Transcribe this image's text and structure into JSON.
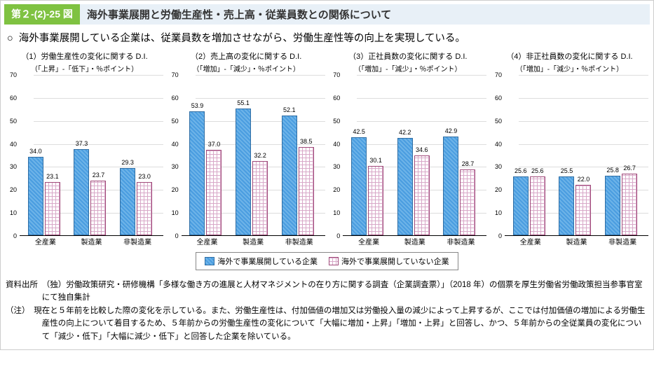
{
  "header": {
    "tag": "第２-(2)-25 図",
    "title": "海外事業展開と労働生産性・売上高・従業員数との関係について"
  },
  "lead": "海外事業展開している企業は、従業員数を増加させながら、労働生産性等の向上を実現している。",
  "axis": {
    "ylim": [
      0,
      70
    ],
    "ytick_step": 10,
    "yticks": [
      0,
      10,
      20,
      30,
      40,
      50,
      60,
      70
    ],
    "background_color": "#ffffff",
    "grid_color": "#dddddd",
    "bar_color_a": "#4a9de0",
    "bar_color_b": "#d8a8c8",
    "bar_border_a": "#2e6da4",
    "bar_border_b": "#a04a7a",
    "label_fontsize": 9
  },
  "categories": [
    "全産業",
    "製造業",
    "非製造業"
  ],
  "charts": [
    {
      "title": "（1）労働生産性の変化に関する D.I.",
      "subtitle": "（「上昇」-「低下」・％ポイント）",
      "type": "bar",
      "groups": [
        {
          "a": 34.0,
          "b": 23.1
        },
        {
          "a": 37.3,
          "b": 23.7
        },
        {
          "a": 29.3,
          "b": 23.0
        }
      ]
    },
    {
      "title": "（2）売上高の変化に関する D.I.",
      "subtitle": "（「増加」-「減少」・％ポイント）",
      "type": "bar",
      "groups": [
        {
          "a": 53.9,
          "b": 37.0
        },
        {
          "a": 55.1,
          "b": 32.2
        },
        {
          "a": 52.1,
          "b": 38.5
        }
      ]
    },
    {
      "title": "（3）正社員数の変化に関する D.I.",
      "subtitle": "（「増加」-「減少」・％ポイント）",
      "type": "bar",
      "groups": [
        {
          "a": 42.5,
          "b": 30.1
        },
        {
          "a": 42.2,
          "b": 34.6
        },
        {
          "a": 42.9,
          "b": 28.7
        }
      ]
    },
    {
      "title": "（4）非正社員数の変化に関する D.I.",
      "subtitle": "（「増加」-「減少」・％ポイント）",
      "type": "bar",
      "groups": [
        {
          "a": 25.6,
          "b": 25.6
        },
        {
          "a": 25.5,
          "b": 22.0
        },
        {
          "a": 25.8,
          "b": 26.7
        }
      ]
    }
  ],
  "legend": {
    "a": "海外で事業展開している企業",
    "b": "海外で事業展開していない企業"
  },
  "footer": {
    "source_label": "資料出所",
    "source_text": "（独）労働政策研究・研修機構「多様な働き方の進展と人材マネジメントの在り方に関する調査（企業調査票）」（2018 年）の個票を厚生労働省労働政策担当参事官室にて独自集計",
    "note_label": "（注）",
    "note_text": "現在と５年前を比較した際の変化を示している。また、労働生産性は、付加価値の増加又は労働投入量の減少によって上昇するが、ここでは付加価値の増加による労働生産性の向上について着目するため、５年前からの労働生産性の変化について「大幅に増加・上昇」「増加・上昇」と回答し、かつ、５年前からの全従業員の変化について「減少・低下」「大幅に減少・低下」と回答した企業を除いている。"
  }
}
